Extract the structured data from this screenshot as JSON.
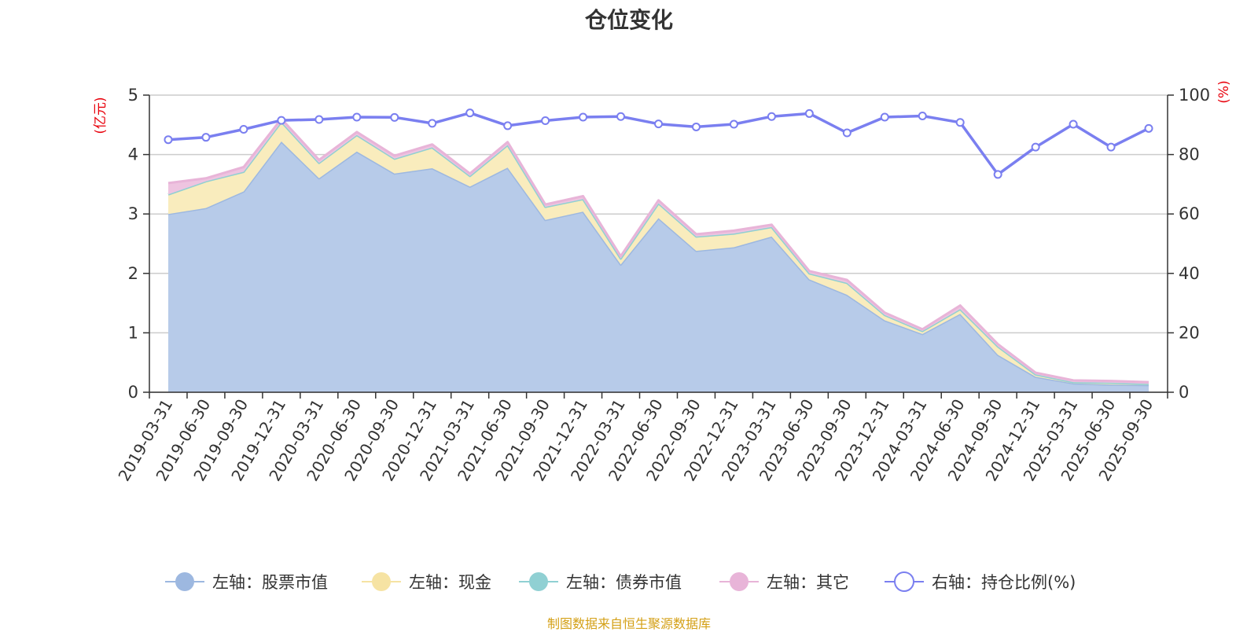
{
  "chart_data": {
    "type": "area",
    "title": "仓位变化",
    "left_unit": "(亿元)",
    "right_unit": "(%)",
    "ylim_left": [
      0,
      5
    ],
    "ylim_right": [
      0,
      100
    ],
    "left_ticks": [
      "0",
      "1",
      "2",
      "3",
      "4",
      "5"
    ],
    "right_ticks": [
      "0",
      "20",
      "40",
      "60",
      "80",
      "100"
    ],
    "categories": [
      "2019-03-31",
      "2019-06-30",
      "2019-09-30",
      "2019-12-31",
      "2020-03-31",
      "2020-06-30",
      "2020-09-30",
      "2020-12-31",
      "2021-03-31",
      "2021-06-30",
      "2021-09-30",
      "2021-12-31",
      "2022-03-31",
      "2022-06-30",
      "2022-09-30",
      "2022-12-31",
      "2023-03-31",
      "2023-06-30",
      "2023-09-30",
      "2023-12-31",
      "2024-03-31",
      "2024-06-30",
      "2024-09-30",
      "2024-12-31",
      "2025-03-31",
      "2025-06-30",
      "2025-09-30"
    ],
    "series": [
      {
        "name": "左轴：股票市值",
        "axis": "left",
        "color": "#9db8e0",
        "fill": "#b7cbe9",
        "values": [
          3.0,
          3.1,
          3.38,
          4.22,
          3.6,
          4.05,
          3.68,
          3.77,
          3.46,
          3.78,
          2.9,
          3.04,
          2.15,
          2.93,
          2.38,
          2.44,
          2.62,
          1.9,
          1.64,
          1.21,
          0.98,
          1.32,
          0.63,
          0.26,
          0.15,
          0.13,
          0.12
        ]
      },
      {
        "name": "左轴：现金",
        "axis": "left",
        "color": "#f6e3a3",
        "fill": "#f9ecbd",
        "values": [
          0.33,
          0.45,
          0.33,
          0.33,
          0.26,
          0.28,
          0.25,
          0.35,
          0.18,
          0.38,
          0.22,
          0.21,
          0.1,
          0.25,
          0.24,
          0.23,
          0.16,
          0.1,
          0.2,
          0.09,
          0.05,
          0.08,
          0.14,
          0.04,
          0.02,
          0.03,
          0.02
        ]
      },
      {
        "name": "左轴：债券市值",
        "axis": "left",
        "color": "#90d0d3",
        "fill": "#90d0d3",
        "values": [
          0,
          0,
          0,
          0,
          0,
          0,
          0,
          0,
          0,
          0,
          0,
          0,
          0,
          0,
          0,
          0,
          0,
          0,
          0,
          0,
          0,
          0,
          0,
          0,
          0,
          0,
          0
        ]
      },
      {
        "name": "左轴：其它",
        "axis": "left",
        "color": "#e8b4d8",
        "fill": "#eec4e0",
        "values": [
          0.19,
          0.05,
          0.08,
          0.05,
          0.05,
          0.05,
          0.05,
          0.05,
          0.04,
          0.05,
          0.04,
          0.05,
          0.04,
          0.05,
          0.04,
          0.05,
          0.04,
          0.04,
          0.05,
          0.04,
          0.03,
          0.06,
          0.04,
          0.03,
          0.03,
          0.03,
          0.03
        ]
      },
      {
        "name": "右轴：持仓比例(%)",
        "axis": "right",
        "color": "#7a7ff0",
        "values": [
          85,
          85.8,
          88.5,
          91.5,
          91.8,
          92.6,
          92.5,
          90.5,
          94,
          89.7,
          91.4,
          92.6,
          92.8,
          90.3,
          89.3,
          90.2,
          92.8,
          93.8,
          87.3,
          92.6,
          93,
          90.8,
          73.3,
          82.5,
          90.2,
          82.5,
          88.8
        ]
      }
    ]
  },
  "source_note": "制图数据来自恒生聚源数据库"
}
